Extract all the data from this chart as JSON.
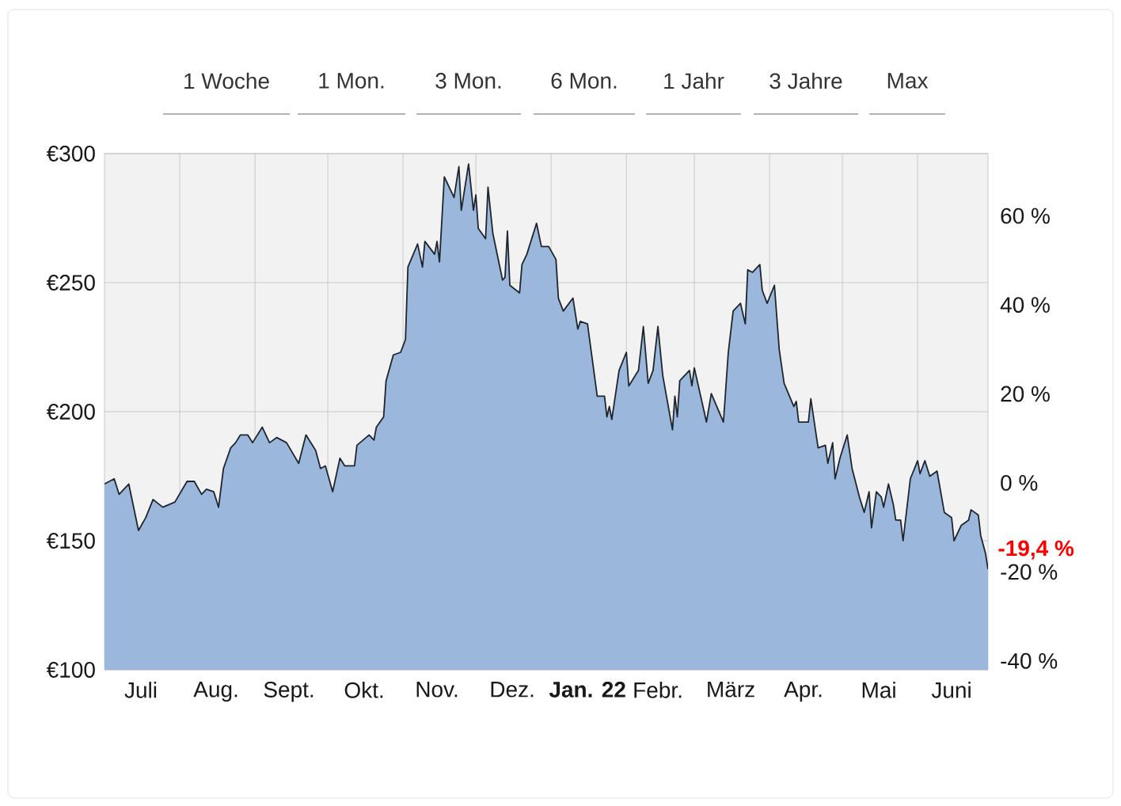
{
  "chart_data": {
    "type": "area",
    "x": [
      "2021-07-01",
      "2021-07-05",
      "2021-07-07",
      "2021-07-11",
      "2021-07-15",
      "2021-07-18",
      "2021-07-21",
      "2021-07-25",
      "2021-07-30",
      "2021-08-04",
      "2021-08-07",
      "2021-08-10",
      "2021-08-12",
      "2021-08-15",
      "2021-08-17",
      "2021-08-19",
      "2021-08-22",
      "2021-08-24",
      "2021-08-26",
      "2021-08-29",
      "2021-08-31",
      "2021-09-04",
      "2021-09-07",
      "2021-09-10",
      "2021-09-14",
      "2021-09-19",
      "2021-09-22",
      "2021-09-26",
      "2021-09-28",
      "2021-09-30",
      "2021-10-03",
      "2021-10-06",
      "2021-10-08",
      "2021-10-12",
      "2021-10-13",
      "2021-10-18",
      "2021-10-20",
      "2021-10-21",
      "2021-10-24",
      "2021-10-25",
      "2021-10-28",
      "2021-10-31",
      "2021-11-02",
      "2021-11-03",
      "2021-11-07",
      "2021-11-09",
      "2021-11-10",
      "2021-11-14",
      "2021-11-15",
      "2021-11-16",
      "2021-11-18",
      "2021-11-22",
      "2021-11-24",
      "2021-11-25",
      "2021-11-28",
      "2021-11-30",
      "2021-12-01",
      "2021-12-02",
      "2021-12-05",
      "2021-12-06",
      "2021-12-08",
      "2021-12-12",
      "2021-12-13",
      "2021-12-14",
      "2021-12-15",
      "2021-12-19",
      "2021-12-20",
      "2021-12-22",
      "2021-12-26",
      "2021-12-28",
      "2021-12-31",
      "2022-01-03",
      "2022-01-04",
      "2022-01-06",
      "2022-01-10",
      "2022-01-12",
      "2022-01-13",
      "2022-01-16",
      "2022-01-20",
      "2022-01-23",
      "2022-01-24",
      "2022-01-25",
      "2022-01-26",
      "2022-01-29",
      "2022-02-01",
      "2022-02-02",
      "2022-02-06",
      "2022-02-08",
      "2022-02-10",
      "2022-02-12",
      "2022-02-14",
      "2022-02-16",
      "2022-02-20",
      "2022-02-21",
      "2022-02-22",
      "2022-02-23",
      "2022-02-27",
      "2022-02-28",
      "2022-03-01",
      "2022-03-06",
      "2022-03-08",
      "2022-03-13",
      "2022-03-15",
      "2022-03-17",
      "2022-03-20",
      "2022-03-22",
      "2022-03-23",
      "2022-03-25",
      "2022-03-28",
      "2022-03-29",
      "2022-03-31",
      "2022-04-03",
      "2022-04-05",
      "2022-04-07",
      "2022-04-11",
      "2022-04-12",
      "2022-04-13",
      "2022-04-17",
      "2022-04-18",
      "2022-04-21",
      "2022-04-24",
      "2022-04-25",
      "2022-04-27",
      "2022-04-28",
      "2022-04-30",
      "2022-05-03",
      "2022-05-05",
      "2022-05-08",
      "2022-05-10",
      "2022-05-12",
      "2022-05-13",
      "2022-05-15",
      "2022-05-17",
      "2022-05-18",
      "2022-05-20",
      "2022-05-22",
      "2022-05-23",
      "2022-05-25",
      "2022-05-26",
      "2022-05-29",
      "2022-06-01",
      "2022-06-02",
      "2022-06-04",
      "2022-06-06",
      "2022-06-09",
      "2022-06-12",
      "2022-06-15",
      "2022-06-16",
      "2022-06-19",
      "2022-06-22",
      "2022-06-23",
      "2022-06-26",
      "2022-06-27",
      "2022-06-29",
      "2022-06-30"
    ],
    "series": [
      {
        "color": "#9bb7dc",
        "values": [
          172,
          174,
          168,
          172,
          154,
          159,
          166,
          163,
          165,
          173,
          173,
          168,
          170,
          169,
          163,
          178,
          186,
          188,
          191,
          191,
          188,
          194,
          188,
          190,
          188,
          180,
          191,
          185,
          178,
          179,
          169,
          182,
          179,
          179,
          187,
          191,
          189,
          194,
          198,
          212,
          222,
          223,
          228,
          256,
          265,
          256,
          266,
          261,
          266,
          258,
          291,
          283,
          295,
          278,
          296,
          278,
          284,
          271,
          267,
          287,
          269,
          251,
          252,
          270,
          249,
          246,
          257,
          261,
          273,
          264,
          264,
          259,
          244,
          239,
          244,
          232,
          235,
          234,
          206,
          206,
          198,
          202,
          197,
          216,
          223,
          210,
          216,
          233,
          211,
          216,
          233,
          214,
          193,
          206,
          198,
          212,
          216,
          210,
          217,
          196,
          207,
          196,
          223,
          239,
          242,
          234,
          255,
          254,
          257,
          247,
          242,
          249,
          224,
          211,
          202,
          204,
          196,
          196,
          205,
          186,
          187,
          180,
          188,
          174,
          182,
          191,
          178,
          167,
          161,
          169,
          155,
          169,
          167,
          163,
          172,
          164,
          158,
          158,
          150,
          174,
          181,
          176,
          181,
          175,
          177,
          161,
          159,
          150,
          156,
          158,
          162,
          160,
          152,
          145,
          139
        ]
      }
    ],
    "xlim": [
      "2021-07-01",
      "2022-06-30"
    ],
    "xticks": [
      {
        "value": "2021-08-01",
        "label": null
      },
      {
        "value": "2021-09-01",
        "label": null
      },
      {
        "value": "2021-10-01",
        "label": null
      },
      {
        "value": "2021-11-01",
        "label": null
      },
      {
        "value": "2021-12-01",
        "label": null
      },
      {
        "value": "2022-01-01",
        "label": null
      },
      {
        "value": "2022-02-01",
        "label": null
      },
      {
        "value": "2022-03-01",
        "label": null
      },
      {
        "value": "2022-04-01",
        "label": null
      },
      {
        "value": "2022-05-01",
        "label": null
      },
      {
        "value": "2022-06-01",
        "label": null
      },
      {
        "value": "2021-07-16",
        "label": "Juli"
      },
      {
        "value": "2021-08-16",
        "label": "Aug."
      },
      {
        "value": "2021-09-15",
        "label": "Sept."
      },
      {
        "value": "2021-10-16",
        "label": "Okt."
      },
      {
        "value": "2021-11-15",
        "label": "Nov."
      },
      {
        "value": "2021-12-16",
        "label": "Dez."
      },
      {
        "value": "2022-01-16",
        "label": "**Jan. 22**"
      },
      {
        "value": "2022-02-14",
        "label": "Febr."
      },
      {
        "value": "2022-03-16",
        "label": "März"
      },
      {
        "value": "2022-04-15",
        "label": "Apr."
      },
      {
        "value": "2022-05-16",
        "label": "Mai"
      },
      {
        "value": "2022-06-15",
        "label": "Juni"
      }
    ],
    "ylim": [
      100,
      300
    ],
    "yticks": [
      {
        "value": 100,
        "label": "€100"
      },
      {
        "value": 150,
        "label": "€150"
      },
      {
        "value": 200,
        "label": "€200"
      },
      {
        "value": 250,
        "label": "€250"
      },
      {
        "value": 300,
        "label": "€300"
      }
    ],
    "y2lim": [
      -42,
      74
    ],
    "y2ticks": [
      {
        "value": -40,
        "label": "-40 %"
      },
      {
        "value": -20,
        "label": "-20 %"
      },
      {
        "value": 0,
        "label": "0 %"
      },
      {
        "value": 20,
        "label": "20 %"
      },
      {
        "value": 40,
        "label": "40 %"
      },
      {
        "value": 60,
        "label": "60 %"
      }
    ],
    "grid": true,
    "annotations": [
      "1 Woche",
      "1 Mon.",
      "3 Mon.",
      "6 Mon.",
      "1 Jahr",
      "3 Jahre",
      "Max",
      {
        "text": "-19,4 %",
        "x": "2022-06-30",
        "y": 139
      }
    ]
  }
}
